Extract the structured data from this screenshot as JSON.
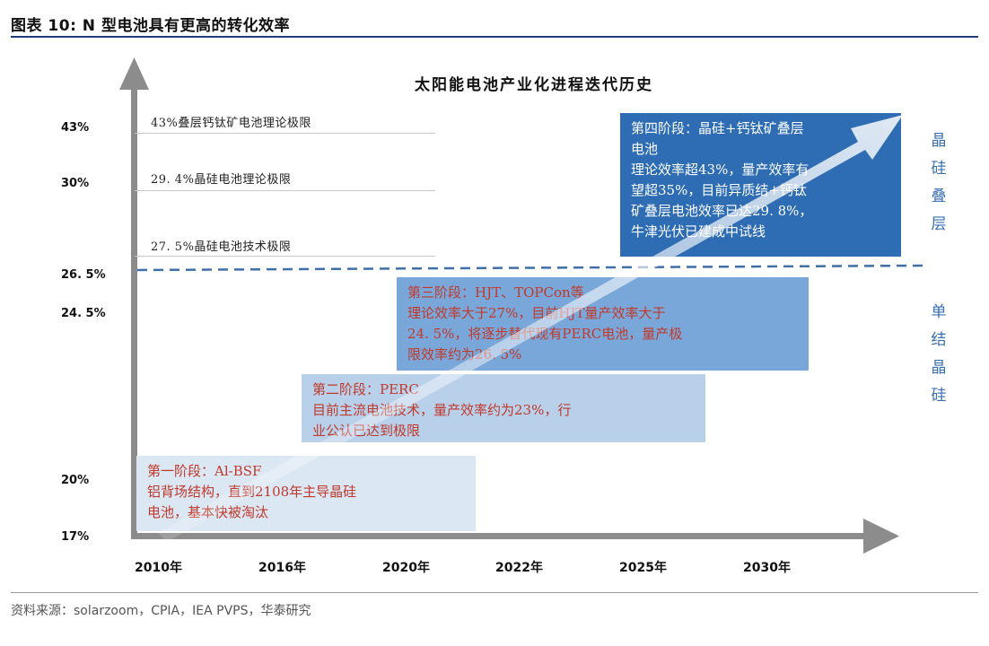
{
  "figure_title": "图表 10:  N 型电池具有更高的转化效率",
  "diagram_title": "太阳能电池产业化进程迭代历史",
  "y_ticks": [
    "43%",
    "30%",
    "26. 5%",
    "24. 5%",
    "20%",
    "17%"
  ],
  "x_ticks": [
    "2010年",
    "2016年",
    "2020年",
    "2022年",
    "2025年",
    "2030年"
  ],
  "limits": [
    {
      "label": "43%叠层钙钛矿电池理论极限"
    },
    {
      "label": "29. 4%晶硅电池理论极限"
    },
    {
      "label": "27. 5%晶硅电池技术极限"
    }
  ],
  "stages": [
    {
      "lines": [
        "第一阶段：Al-BSF",
        "铝背场结构，直到2108年主导晶硅",
        "电池，基本快被淘汰"
      ]
    },
    {
      "lines": [
        "第二阶段：PERC",
        "目前主流电池技术，量产效率约为23%，行",
        "业公认已达到极限"
      ]
    },
    {
      "lines": [
        "第三阶段：HJT、TOPCon等",
        "理论效率大于27%，目前HJT量产效率大于",
        "24. 5%，将逐步替代现有PERC电池，量产极",
        "限效率约为26. 5%"
      ]
    },
    {
      "lines": [
        "第四阶段：晶硅+钙钛矿叠层",
        "电池",
        "理论效率超43%，量产效率有",
        "望超35%，目前异质结+钙钛",
        "矿叠层电池效率已达29. 8%，",
        "牛津光伏已建成中试线"
      ]
    }
  ],
  "side_labels": {
    "upper": [
      "晶",
      "硅",
      "叠",
      "层"
    ],
    "lower": [
      "单",
      "结",
      "晶",
      "硅"
    ]
  },
  "source": "资料来源：solarzoom，CPIA，IEA PVPS，华泰研究",
  "colors": {
    "axis": "#8c8c8c",
    "dashed_divider": "#3f6ea8",
    "stage_text": "#c0392b",
    "stage1_bg": "#dce7f4",
    "stage2_bg": "#b9d0ea",
    "stage3_bg": "#7aa7d9",
    "stage4_bg": "#2e6db3",
    "side_label": "#3a6fb0"
  }
}
